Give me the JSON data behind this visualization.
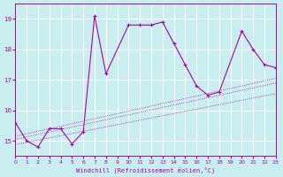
{
  "xlabel": "Windchill (Refroidissement éolien,°C)",
  "background_color": "#c8eef0",
  "line_color": "#aa00aa",
  "grid_color": "#ffffff",
  "xlim": [
    0,
    23
  ],
  "ylim": [
    14.5,
    19.5
  ],
  "yticks": [
    15,
    16,
    17,
    18,
    19
  ],
  "xticks": [
    0,
    1,
    2,
    3,
    4,
    5,
    6,
    7,
    8,
    9,
    10,
    11,
    12,
    13,
    14,
    15,
    16,
    17,
    18,
    19,
    20,
    21,
    22,
    23
  ],
  "series1_x": [
    0,
    1,
    2,
    3,
    4,
    5,
    6,
    7,
    8,
    10,
    11,
    12,
    13,
    14,
    15,
    16,
    17,
    18,
    20,
    21,
    22,
    23
  ],
  "series1_y": [
    15.6,
    15.0,
    14.8,
    15.4,
    15.4,
    14.9,
    15.3,
    19.1,
    17.2,
    18.8,
    18.8,
    18.8,
    18.9,
    18.2,
    17.5,
    16.8,
    16.5,
    16.6,
    18.6,
    18.0,
    17.5,
    17.4
  ],
  "trend_lines": [
    {
      "x": [
        0,
        23
      ],
      "y": [
        14.88,
        16.55
      ]
    },
    {
      "x": [
        0,
        23
      ],
      "y": [
        15.05,
        16.9
      ]
    },
    {
      "x": [
        0,
        23
      ],
      "y": [
        15.15,
        17.05
      ]
    }
  ]
}
